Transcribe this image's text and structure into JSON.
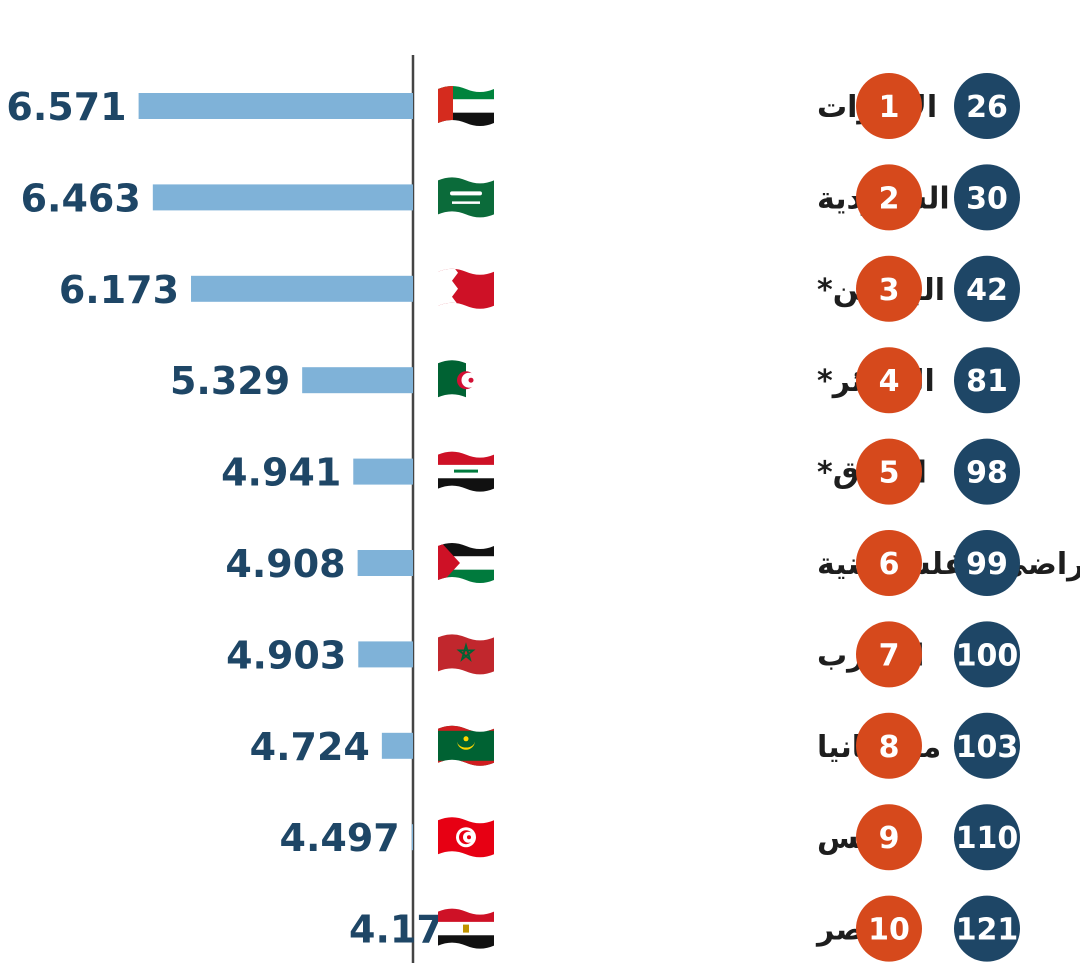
{
  "colors": {
    "bar": "#7fb2d8",
    "value_text": "#1e4666",
    "rank_circle": "#d6491c",
    "global_circle": "#1e4666",
    "axis": "#444444"
  },
  "chart_data": {
    "type": "bar",
    "orientation": "horizontal",
    "categories": [
      "الإمارات",
      "السعودية",
      "البحرين*",
      "الجزائر*",
      "العراق*",
      "الأراضي الفلسطينية",
      "المغرب",
      "موريتانيا",
      "تونس",
      "مصر"
    ],
    "values": [
      6.571,
      6.463,
      6.173,
      5.329,
      4.941,
      4.908,
      4.903,
      4.724,
      4.497,
      4.17
    ],
    "value_labels": [
      "6.571",
      "6.463",
      "6.173",
      "5.329",
      "4.941",
      "4.908",
      "4.903",
      "4.724",
      "4.497",
      "4.17"
    ],
    "arab_rank": [
      "1",
      "2",
      "3",
      "4",
      "5",
      "6",
      "7",
      "8",
      "9",
      "10"
    ],
    "global_rank": [
      "26",
      "30",
      "42",
      "81",
      "98",
      "99",
      "100",
      "103",
      "110",
      "121"
    ],
    "flags": [
      "uae-flag-icon",
      "saudi-flag-icon",
      "bahrain-flag-icon",
      "algeria-flag-icon",
      "iraq-flag-icon",
      "palestine-flag-icon",
      "morocco-flag-icon",
      "mauritania-flag-icon",
      "tunisia-flag-icon",
      "egypt-flag-icon"
    ],
    "grid": false,
    "legend": "none"
  }
}
